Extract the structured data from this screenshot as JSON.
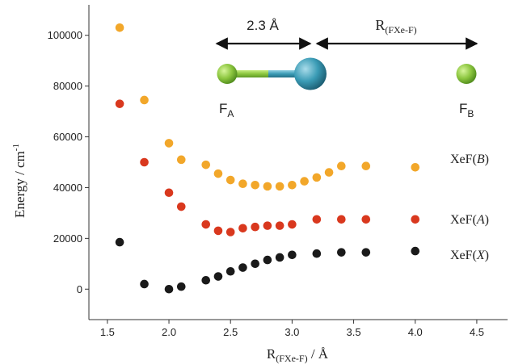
{
  "chart_data": {
    "type": "scatter",
    "xlabel_main": "R",
    "xlabel_sub": "(FXe-F)",
    "xlabel_unit": " / Å",
    "ylabel": "Energy / cm",
    "ylabel_sup": "-1",
    "xlim": [
      1.35,
      4.75
    ],
    "ylim": [
      -12000,
      112000
    ],
    "xticks": [
      1.5,
      2.0,
      2.5,
      3.0,
      3.5,
      4.0,
      4.5
    ],
    "xtick_labels": [
      "1.5",
      "2.0",
      "2.5",
      "3.0",
      "3.5",
      "4.0",
      "4.5"
    ],
    "yticks": [
      0,
      20000,
      40000,
      60000,
      80000,
      100000
    ],
    "ytick_labels": [
      "0",
      "20000",
      "40000",
      "60000",
      "80000",
      "100000"
    ],
    "grid": false,
    "series": [
      {
        "key": "B",
        "name_pre": "XeF(",
        "name_ital": "B",
        "name_post": ")",
        "color": "#f2a72a",
        "x": [
          1.6,
          1.8,
          2.0,
          2.1,
          2.3,
          2.4,
          2.5,
          2.6,
          2.7,
          2.8,
          2.9,
          3.0,
          3.1,
          3.2,
          3.3,
          3.4,
          3.6,
          4.0
        ],
        "y": [
          103000,
          74500,
          57500,
          51000,
          49000,
          45500,
          43000,
          41500,
          41000,
          40500,
          40500,
          41000,
          42500,
          44000,
          46000,
          48500,
          48500,
          48000
        ]
      },
      {
        "key": "A",
        "name_pre": "XeF(",
        "name_ital": "A",
        "name_post": ")",
        "color": "#d9381e",
        "x": [
          1.6,
          1.8,
          2.0,
          2.1,
          2.3,
          2.4,
          2.5,
          2.6,
          2.7,
          2.8,
          2.9,
          3.0,
          3.2,
          3.4,
          3.6,
          4.0
        ],
        "y": [
          73000,
          50000,
          38000,
          32500,
          25500,
          23000,
          22500,
          24000,
          24500,
          25000,
          25000,
          25500,
          27500,
          27500,
          27500,
          27500
        ]
      },
      {
        "key": "X",
        "name_pre": "XeF(",
        "name_ital": "X",
        "name_post": ")",
        "color": "#1a1a1a",
        "x": [
          1.6,
          1.8,
          2.0,
          2.1,
          2.3,
          2.4,
          2.5,
          2.6,
          2.7,
          2.8,
          2.9,
          3.0,
          3.2,
          3.4,
          3.6,
          4.0
        ],
        "y": [
          18500,
          2000,
          0,
          1000,
          3500,
          5000,
          7000,
          8500,
          10000,
          11500,
          12500,
          13500,
          14000,
          14500,
          14500,
          15000
        ]
      }
    ]
  },
  "diagram": {
    "bond_label": "2.3 Å",
    "r_label_main": "R",
    "r_label_sub": "(FXe-F)",
    "fa_main": "F",
    "fa_sub": "A",
    "fb_main": "F",
    "fb_sub": "B",
    "colors": {
      "fluorine": "#8cc63f",
      "xenon": "#3a9bb5"
    }
  }
}
